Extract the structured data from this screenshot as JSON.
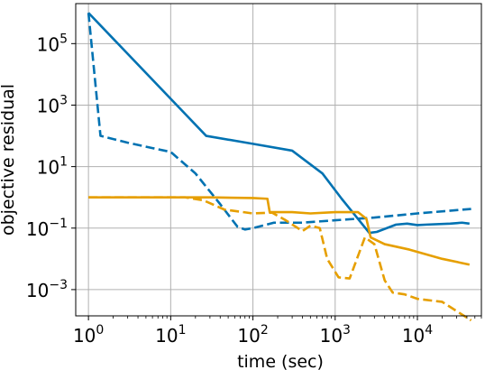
{
  "chart_data": {
    "type": "line",
    "xlabel": "time (sec)",
    "ylabel": "objective residual",
    "x_scale": "log",
    "y_scale": "log",
    "xlim": [
      0.7,
      60000
    ],
    "ylim": [
      0.00014,
      2000000
    ],
    "grid": true,
    "legend": "none",
    "x_ticks": [
      {
        "value": 1,
        "base": "10",
        "exp": "0"
      },
      {
        "value": 10,
        "base": "10",
        "exp": "1"
      },
      {
        "value": 100,
        "base": "10",
        "exp": "2"
      },
      {
        "value": 1000,
        "base": "10",
        "exp": "3"
      },
      {
        "value": 10000,
        "base": "10",
        "exp": "4"
      }
    ],
    "y_ticks": [
      {
        "value": 0.001,
        "base": "10",
        "exp": "−3"
      },
      {
        "value": 0.1,
        "base": "10",
        "exp": "−1"
      },
      {
        "value": 10,
        "base": "10",
        "exp": "1"
      },
      {
        "value": 1000,
        "base": "10",
        "exp": "3"
      },
      {
        "value": 100000,
        "base": "10",
        "exp": "5"
      }
    ],
    "series": [
      {
        "color": "#0072b2",
        "dash": "solid",
        "points": [
          [
            1,
            1000000
          ],
          [
            27,
            100
          ],
          [
            100,
            55
          ],
          [
            300,
            33
          ],
          [
            700,
            6
          ],
          [
            1200,
            0.9
          ],
          [
            2600,
            0.07
          ],
          [
            3200,
            0.075
          ],
          [
            5500,
            0.13
          ],
          [
            7500,
            0.14
          ],
          [
            10000,
            0.125
          ],
          [
            13000,
            0.13
          ],
          [
            25000,
            0.14
          ],
          [
            35000,
            0.15
          ],
          [
            43000,
            0.14
          ]
        ]
      },
      {
        "color": "#0072b2",
        "dash": "dashed",
        "points": [
          [
            1,
            1000000
          ],
          [
            1.4,
            100
          ],
          [
            3,
            60
          ],
          [
            6,
            40
          ],
          [
            10,
            30
          ],
          [
            20,
            6
          ],
          [
            40,
            0.6
          ],
          [
            65,
            0.11
          ],
          [
            80,
            0.09
          ],
          [
            100,
            0.1
          ],
          [
            180,
            0.15
          ],
          [
            400,
            0.15
          ],
          [
            1000,
            0.18
          ],
          [
            3000,
            0.22
          ],
          [
            10000,
            0.3
          ],
          [
            45000,
            0.42
          ]
        ]
      },
      {
        "color": "#e69f00",
        "dash": "solid",
        "points": [
          [
            1,
            1
          ],
          [
            10,
            1
          ],
          [
            30,
            1
          ],
          [
            100,
            0.95
          ],
          [
            150,
            0.9
          ],
          [
            160,
            0.33
          ],
          [
            300,
            0.33
          ],
          [
            500,
            0.3
          ],
          [
            1000,
            0.33
          ],
          [
            1900,
            0.33
          ],
          [
            2400,
            0.2
          ],
          [
            2700,
            0.05
          ],
          [
            4000,
            0.03
          ],
          [
            8000,
            0.02
          ],
          [
            20000,
            0.01
          ],
          [
            43000,
            0.0065
          ]
        ]
      },
      {
        "color": "#e69f00",
        "dash": "dashed",
        "points": [
          [
            1,
            1
          ],
          [
            15,
            1
          ],
          [
            25,
            0.8
          ],
          [
            45,
            0.4
          ],
          [
            100,
            0.3
          ],
          [
            170,
            0.32
          ],
          [
            250,
            0.18
          ],
          [
            400,
            0.08
          ],
          [
            500,
            0.12
          ],
          [
            650,
            0.1
          ],
          [
            800,
            0.01
          ],
          [
            1100,
            0.0025
          ],
          [
            1500,
            0.0023
          ],
          [
            2300,
            0.05
          ],
          [
            3000,
            0.03
          ],
          [
            4000,
            0.002
          ],
          [
            5000,
            0.0008
          ],
          [
            7000,
            0.0007
          ],
          [
            10000,
            0.0005
          ],
          [
            20000,
            0.0004
          ],
          [
            45000,
            0.0001
          ]
        ]
      }
    ]
  }
}
